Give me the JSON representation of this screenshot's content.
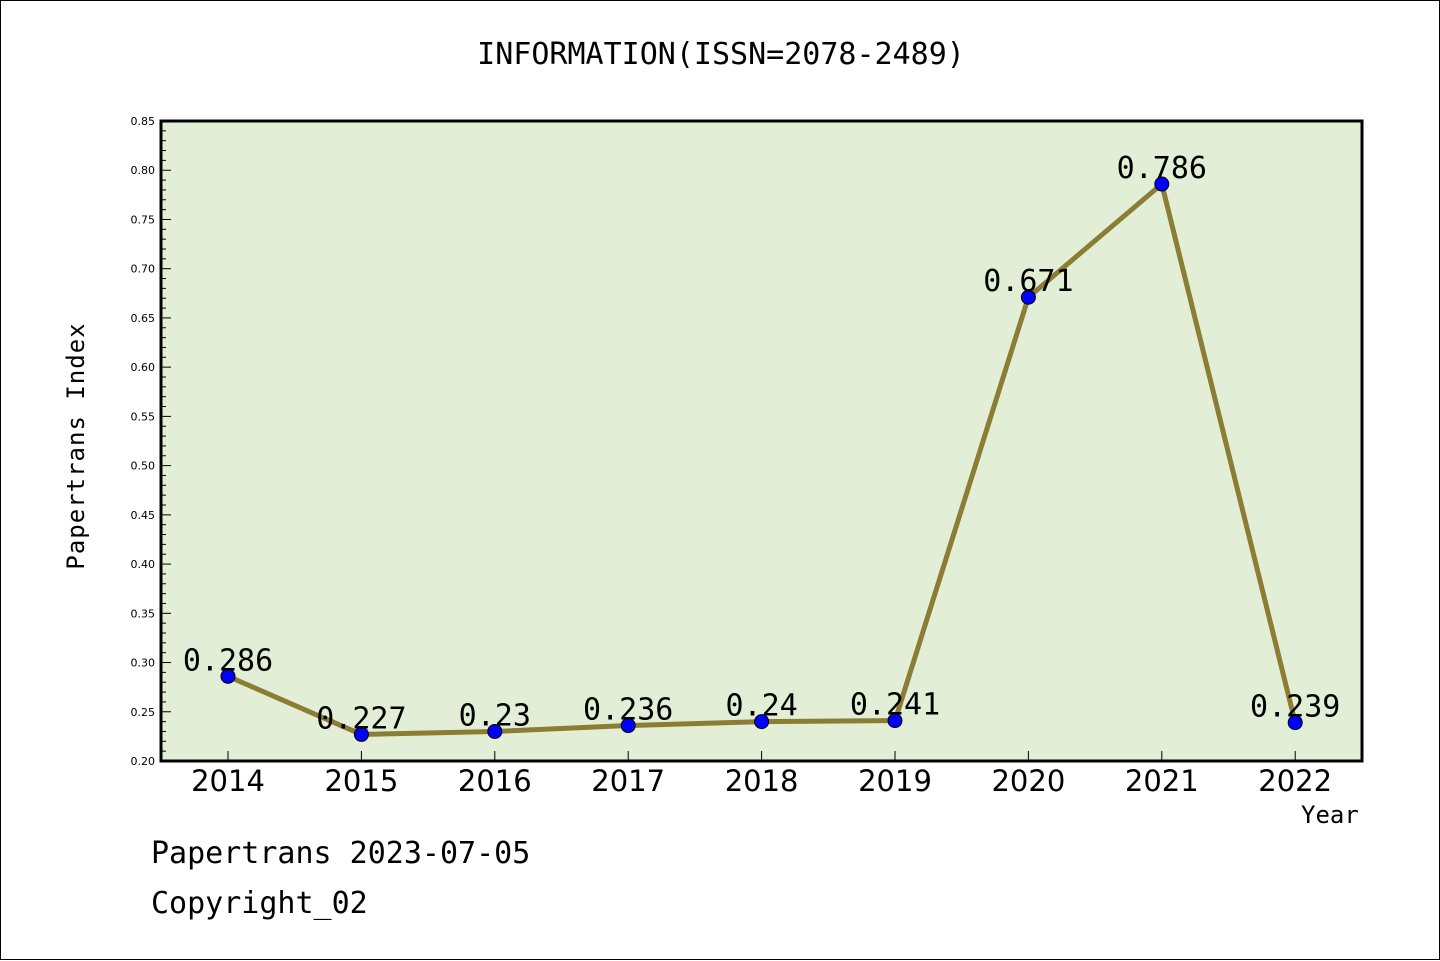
{
  "chart_data": {
    "type": "line",
    "title": "INFORMATION(ISSN=2078-2489)",
    "xlabel": "Year",
    "ylabel": "Papertrans Index",
    "categories": [
      "2014",
      "2015",
      "2016",
      "2017",
      "2018",
      "2019",
      "2020",
      "2021",
      "2022"
    ],
    "series": [
      {
        "values": [
          0.286,
          0.227,
          0.23,
          0.236,
          0.24,
          0.241,
          0.671,
          0.786,
          0.239
        ],
        "labels": [
          "0.286",
          "0.227",
          "0.23",
          "0.236",
          "0.24",
          "0.241",
          "0.671",
          "0.786",
          "0.239"
        ]
      }
    ],
    "ylim": [
      0.2,
      0.85
    ],
    "yticks": [
      "0.20",
      "0.25",
      "0.30",
      "0.35",
      "0.40",
      "0.45",
      "0.50",
      "0.55",
      "0.60",
      "0.65",
      "0.70",
      "0.75",
      "0.80",
      "0.85"
    ],
    "grid": false,
    "colors": {
      "plot_background": "#e2efd6",
      "line": "#8b7d33",
      "marker": "#0000ff"
    }
  },
  "footer": {
    "date_text": "Papertrans 2023-07-05",
    "copyright_text": "Copyright_02"
  }
}
